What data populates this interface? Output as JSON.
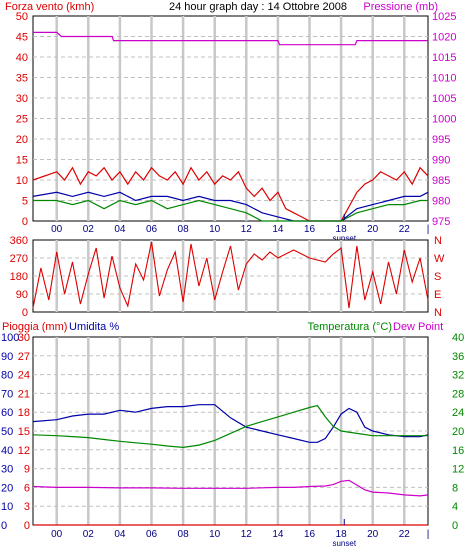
{
  "header": {
    "left_label": "Forza vento (kmh)",
    "title": "24 hour graph day : 14 Ottobre 2008",
    "right_label": "Pressione (mb)"
  },
  "bottom_header": {
    "rain_label": "Pioggia (mm)",
    "humidity_label": "Umidita %",
    "temp_label": "Temperatura (°C)",
    "dew_label": "Dew Point"
  },
  "x_ticks": [
    "00",
    "02",
    "04",
    "06",
    "08",
    "10",
    "12",
    "14",
    "16",
    "18",
    "20",
    "22",
    "|"
  ],
  "sunset_label": "sunset",
  "colors": {
    "wind_gust": "#dd0000",
    "wind_avg": "#0000aa",
    "wind_low": "#008800",
    "pressure": "#cc00cc",
    "direction": "#dd0000",
    "humidity": "#0000aa",
    "temperature": "#008800",
    "dew_point": "#cc00cc",
    "rain": "#dd0000",
    "grid": "#c0c0c0",
    "frame": "#000000"
  },
  "chart_data": [
    {
      "type": "line",
      "panel": "wind-pressure",
      "x_unit": "hour",
      "left_axis": {
        "label": "Forza vento (kmh)",
        "ylim": [
          0,
          50
        ],
        "ticks": [
          0,
          5,
          10,
          15,
          20,
          25,
          30,
          35,
          40,
          45,
          50
        ]
      },
      "right_axis": {
        "label": "Pressione (mb)",
        "ylim": [
          975,
          1025
        ],
        "ticks": [
          975,
          980,
          985,
          990,
          995,
          1000,
          1005,
          1010,
          1015,
          1020,
          1025
        ]
      },
      "series": [
        {
          "key": "pressure",
          "axis": "right",
          "x": [
            -1.5,
            0.0,
            0.3,
            1.9,
            2.0,
            3.5,
            3.6,
            4.3,
            4.4,
            7.6,
            7.7,
            8.3,
            8.4,
            14.0,
            14.1,
            18.9,
            19.0,
            23.5
          ],
          "y": [
            1021,
            1021,
            1020,
            1020,
            1020,
            1020,
            1019,
            1019,
            1019,
            1019,
            1019,
            1019,
            1019,
            1019,
            1018,
            1018,
            1019,
            1019
          ]
        },
        {
          "key": "wind_gust",
          "axis": "left",
          "x": [
            -1.5,
            0.0,
            0.5,
            1.0,
            1.5,
            2.0,
            2.5,
            3.0,
            3.5,
            4.0,
            4.5,
            5.0,
            5.5,
            6.0,
            6.5,
            7.0,
            7.5,
            8.0,
            8.5,
            9.0,
            9.5,
            10.0,
            10.5,
            11.0,
            11.5,
            12.0,
            12.5,
            13.0,
            13.5,
            14.0,
            14.5,
            15.0,
            15.5,
            16.0,
            17.0,
            18.0,
            19.0,
            19.5,
            20.0,
            20.5,
            21.0,
            21.5,
            22.0,
            22.5,
            23.0,
            23.5
          ],
          "y": [
            10,
            12,
            10,
            13,
            9,
            12,
            11,
            13,
            10,
            12,
            9,
            12,
            10,
            13,
            11,
            10,
            12,
            9,
            13,
            10,
            12,
            9,
            11,
            10,
            12,
            8,
            6,
            8,
            5,
            7,
            3,
            2,
            1,
            0,
            0,
            0,
            7,
            9,
            10,
            12,
            11,
            10,
            12,
            9,
            13,
            11
          ]
        },
        {
          "key": "wind_avg",
          "axis": "left",
          "x": [
            -1.5,
            0.0,
            1.0,
            2.0,
            3.0,
            4.0,
            5.0,
            6.0,
            7.0,
            8.0,
            9.0,
            10.0,
            11.0,
            12.0,
            13.0,
            14.0,
            15.0,
            16.0,
            17.0,
            18.0,
            19.0,
            20.0,
            21.0,
            22.0,
            23.0,
            23.5
          ],
          "y": [
            6,
            7,
            6,
            7,
            6,
            7,
            5,
            6,
            6,
            5,
            6,
            5,
            5,
            4,
            2,
            1,
            0,
            0,
            0,
            0,
            3,
            4,
            5,
            6,
            6,
            7
          ]
        },
        {
          "key": "wind_low",
          "axis": "left",
          "x": [
            -1.5,
            0.0,
            1.0,
            2.0,
            3.0,
            4.0,
            5.0,
            6.0,
            7.0,
            8.0,
            9.0,
            10.0,
            11.0,
            12.0,
            13.0,
            14.0,
            15.0,
            16.0,
            17.0,
            18.0,
            19.0,
            20.0,
            21.0,
            22.0,
            23.0,
            23.5
          ],
          "y": [
            5,
            5,
            4,
            5,
            3,
            5,
            4,
            5,
            3,
            4,
            5,
            4,
            3,
            2,
            0,
            0,
            0,
            0,
            0,
            0,
            2,
            3,
            4,
            4,
            5,
            5
          ]
        }
      ]
    },
    {
      "type": "line",
      "panel": "wind-direction",
      "x_unit": "hour",
      "left_axis": {
        "ylim": [
          0,
          360
        ],
        "ticks": [
          0,
          90,
          180,
          270,
          360
        ]
      },
      "right_axis_labels": [
        "N",
        "W",
        "S",
        "E",
        "N"
      ],
      "series": [
        {
          "key": "direction",
          "x": [
            -1.5,
            -1.0,
            -0.5,
            0.0,
            0.5,
            1.0,
            1.5,
            2.0,
            2.5,
            3.0,
            3.5,
            4.0,
            4.5,
            5.0,
            5.5,
            6.0,
            6.5,
            7.0,
            7.5,
            8.0,
            8.5,
            9.0,
            9.5,
            10.0,
            10.5,
            11.0,
            11.5,
            12.0,
            12.5,
            13.0,
            13.5,
            14.0,
            15.0,
            16.0,
            17.0,
            17.5,
            18.0,
            18.5,
            19.0,
            19.5,
            20.0,
            20.5,
            21.0,
            21.5,
            22.0,
            22.5,
            23.0,
            23.5
          ],
          "y": [
            20,
            220,
            60,
            300,
            90,
            250,
            40,
            190,
            320,
            70,
            280,
            120,
            30,
            240,
            160,
            350,
            80,
            210,
            300,
            50,
            340,
            130,
            270,
            60,
            200,
            330,
            110,
            240,
            290,
            260,
            300,
            270,
            310,
            270,
            250,
            290,
            320,
            20,
            330,
            60,
            200,
            40,
            250,
            90,
            310,
            150,
            270,
            60
          ]
        }
      ]
    },
    {
      "type": "line",
      "panel": "temp-humidity",
      "x_unit": "hour",
      "left_axes": [
        {
          "label": "Pioggia (mm)",
          "ylim": [
            0,
            30
          ],
          "ticks": [
            0,
            3,
            6,
            9,
            12,
            15,
            18,
            21,
            24,
            27,
            30
          ]
        },
        {
          "label": "Umidita %",
          "ylim": [
            0,
            100
          ],
          "ticks": [
            0,
            10,
            20,
            30,
            40,
            50,
            60,
            70,
            80,
            90,
            100
          ]
        }
      ],
      "right_axis": {
        "label": "Temperatura (°C)",
        "ylim": [
          0,
          40
        ],
        "ticks": [
          0,
          4,
          8,
          12,
          16,
          20,
          24,
          28,
          32,
          36,
          40
        ]
      },
      "series": [
        {
          "key": "humidity",
          "axis": "humidity",
          "x": [
            -1.5,
            0.0,
            1.0,
            2.0,
            3.0,
            4.0,
            5.0,
            6.0,
            7.0,
            8.0,
            9.0,
            10.0,
            11.0,
            12.0,
            13.0,
            14.0,
            15.0,
            16.0,
            16.5,
            17.0,
            17.5,
            18.0,
            18.5,
            19.0,
            19.5,
            20.0,
            21.0,
            22.0,
            23.0,
            23.5
          ],
          "y": [
            55,
            56,
            58,
            59,
            59,
            61,
            60,
            62,
            63,
            63,
            64,
            64,
            57,
            52,
            50,
            48,
            46,
            44,
            44,
            46,
            52,
            59,
            62,
            60,
            52,
            50,
            48,
            47,
            47,
            48
          ]
        },
        {
          "key": "temperature",
          "axis": "temperature",
          "x": [
            -1.5,
            0.0,
            1.0,
            2.0,
            3.0,
            4.0,
            5.0,
            6.0,
            7.0,
            8.0,
            9.0,
            10.0,
            11.0,
            12.0,
            13.0,
            14.0,
            15.0,
            16.0,
            16.5,
            17.0,
            17.5,
            18.0,
            19.0,
            20.0,
            21.0,
            22.0,
            23.0,
            23.5
          ],
          "y": [
            19.2,
            19.0,
            18.8,
            18.6,
            18.2,
            17.8,
            17.5,
            17.2,
            16.8,
            16.5,
            17.0,
            18.0,
            19.5,
            21.0,
            22.0,
            23.0,
            24.0,
            25.0,
            25.4,
            23.0,
            21.0,
            20.0,
            19.5,
            19.0,
            19.0,
            19.0,
            19.0,
            19.0
          ]
        },
        {
          "key": "dew_point",
          "axis": "temperature",
          "x": [
            -1.5,
            0.0,
            2.0,
            4.0,
            6.0,
            8.0,
            10.0,
            12.0,
            14.0,
            15.0,
            16.0,
            17.0,
            17.5,
            18.0,
            18.5,
            19.0,
            19.5,
            20.0,
            21.0,
            22.0,
            23.0,
            23.5
          ],
          "y": [
            8.2,
            8.0,
            8.0,
            7.9,
            7.9,
            7.8,
            7.8,
            7.8,
            8.0,
            8.0,
            8.2,
            8.3,
            8.6,
            9.3,
            9.5,
            8.5,
            7.5,
            7.0,
            6.8,
            6.4,
            6.2,
            6.4
          ]
        },
        {
          "key": "rain",
          "axis": "rain",
          "x": [
            -1.5,
            23.5
          ],
          "y": [
            0,
            0
          ]
        }
      ]
    }
  ]
}
